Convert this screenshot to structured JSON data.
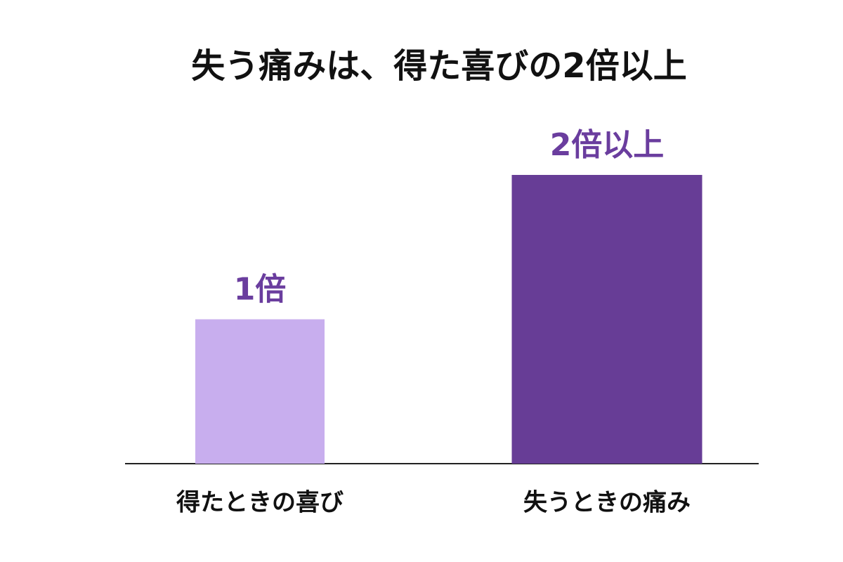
{
  "chart_data": {
    "type": "bar",
    "title": "失う痛みは、得た喜びの2倍以上",
    "categories": [
      "得たときの喜び",
      "失うときの痛み"
    ],
    "values": [
      1,
      2
    ],
    "value_labels": [
      "1倍",
      "2倍以上"
    ],
    "colors": [
      "#c8aeee",
      "#673d96"
    ],
    "label_color": "#6a3d9e"
  }
}
